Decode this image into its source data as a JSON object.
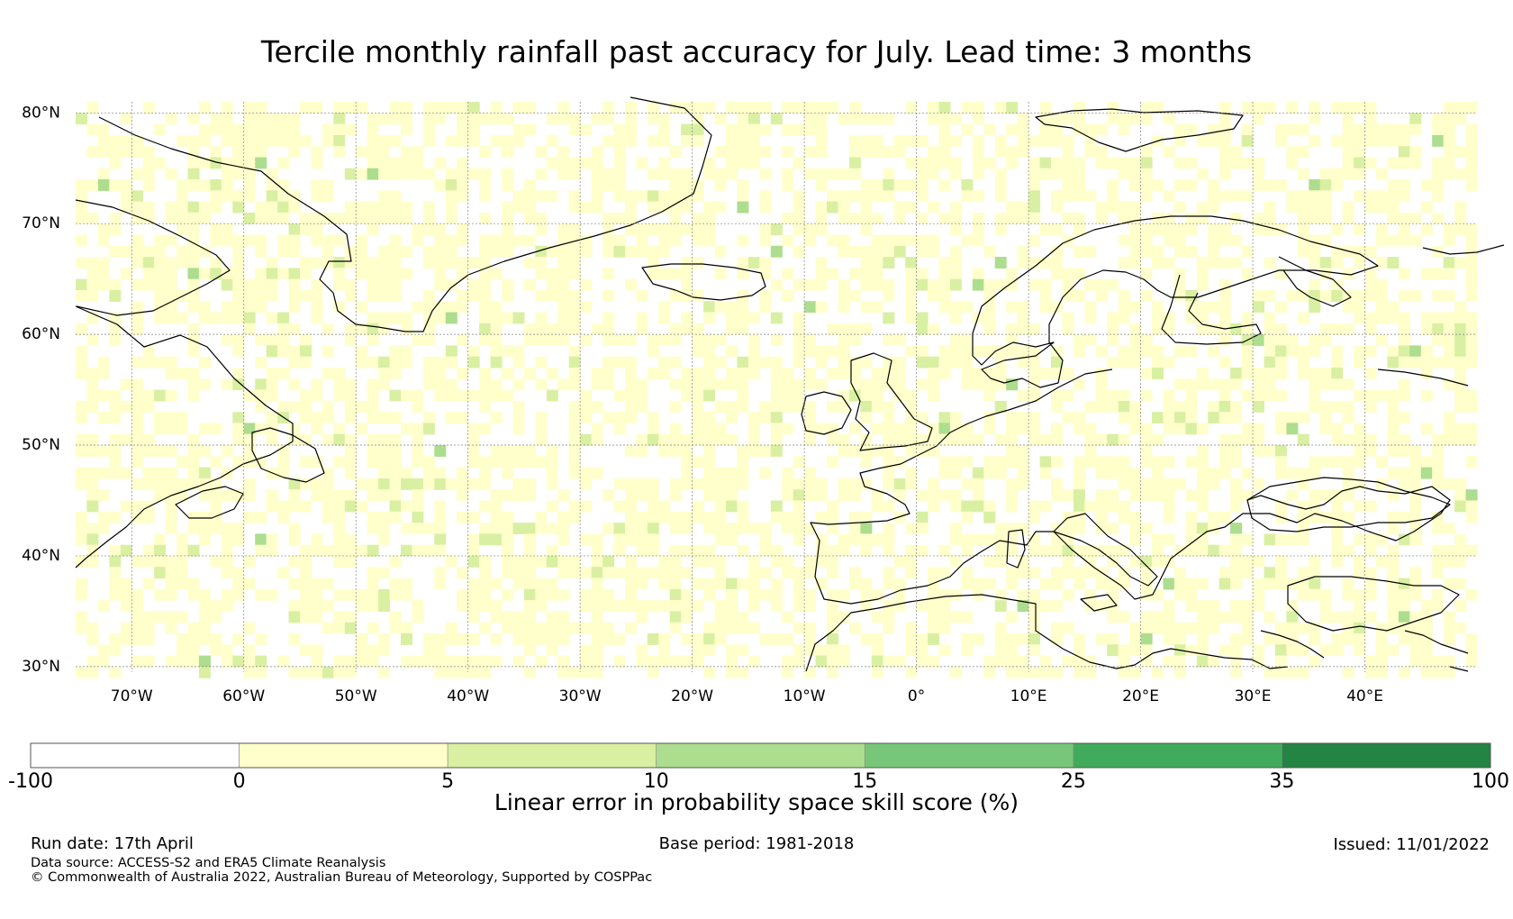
{
  "title": "Tercile monthly rainfall past accuracy for July. Lead time: 3 months",
  "map": {
    "lon_range": [
      -75,
      50
    ],
    "lat_range": [
      29.5,
      81
    ],
    "lat_ticks": [
      {
        "value": 30,
        "label": "30°N"
      },
      {
        "value": 40,
        "label": "40°N"
      },
      {
        "value": 50,
        "label": "50°N"
      },
      {
        "value": 60,
        "label": "60°N"
      },
      {
        "value": 70,
        "label": "70°N"
      },
      {
        "value": 80,
        "label": "80°N"
      }
    ],
    "lon_ticks": [
      {
        "value": -70,
        "label": "70°W"
      },
      {
        "value": -60,
        "label": "60°W"
      },
      {
        "value": -50,
        "label": "50°W"
      },
      {
        "value": -40,
        "label": "40°W"
      },
      {
        "value": -30,
        "label": "30°W"
      },
      {
        "value": -20,
        "label": "20°W"
      },
      {
        "value": -10,
        "label": "10°W"
      },
      {
        "value": 0,
        "label": "0°"
      },
      {
        "value": 10,
        "label": "10°E"
      },
      {
        "value": 20,
        "label": "20°E"
      },
      {
        "value": 30,
        "label": "30°E"
      },
      {
        "value": 40,
        "label": "40°E"
      }
    ],
    "grid": true,
    "coastline_color": "#000000"
  },
  "colorbar": {
    "title": "Linear error in probability space skill score (%)",
    "bins": [
      {
        "from": -100,
        "to": 0,
        "color": "#ffffff"
      },
      {
        "from": 0,
        "to": 5,
        "color": "#ffffcc"
      },
      {
        "from": 5,
        "to": 10,
        "color": "#d9f0a3"
      },
      {
        "from": 10,
        "to": 15,
        "color": "#addd8e"
      },
      {
        "from": 15,
        "to": 25,
        "color": "#78c679"
      },
      {
        "from": 25,
        "to": 35,
        "color": "#41ab5d"
      },
      {
        "from": 35,
        "to": 100,
        "color": "#238443"
      }
    ],
    "tick_labels": [
      "-100",
      "0",
      "5",
      "10",
      "15",
      "25",
      "35",
      "100"
    ]
  },
  "footer": {
    "run_date": "Run date: 17th April",
    "base_period": "Base period: 1981-2018",
    "issued": "Issued: 11/01/2022",
    "data_source": "Data source: ACCESS-S2 and ERA5 Climate Reanalysis",
    "copyright": "© Commonwealth of Australia 2022, Australian Bureau of Meteorology, Supported by COSPPac"
  }
}
